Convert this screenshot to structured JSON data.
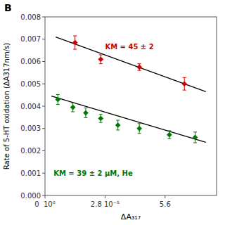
{
  "chart_data": {
    "type": "scatter",
    "title": "B",
    "xlabel": "ΔA₃₁₇",
    "ylabel": "Rate of 5-HT oxidation (ΔA317nm/s)",
    "xlim": [
      0,
      8e-05
    ],
    "ylim": [
      0,
      0.008
    ],
    "xticks": [
      {
        "value": 0,
        "label": "0  10⁰"
      },
      {
        "value": 2.8e-05,
        "label": "2.8 10⁻⁵"
      },
      {
        "value": 5.6e-05,
        "label": "5.6"
      }
    ],
    "yticks": [
      {
        "value": 0,
        "label": "0.000"
      },
      0.001,
      0.002,
      0.003,
      0.004,
      0.005,
      0.006,
      0.007,
      0.008
    ],
    "grid": false,
    "series": [
      {
        "type": "line",
        "color": "#000000",
        "x": [
          5e-06,
          7.5e-05
        ],
        "values": [
          0.0071,
          0.00465
        ]
      },
      {
        "type": "line",
        "color": "#000000",
        "x": [
          3e-06,
          7.5e-05
        ],
        "values": [
          0.00445,
          0.00238
        ]
      },
      {
        "type": "scatter",
        "color": "#cc0000",
        "marker": "diamond",
        "x": [
          1.4e-05,
          2.6e-05,
          4.4e-05,
          6.5e-05
        ],
        "values": [
          0.00685,
          0.0061,
          0.00575,
          0.005
        ],
        "yerr": [
          0.0003,
          0.0002,
          0.00015,
          0.00028
        ]
      },
      {
        "type": "scatter",
        "color": "#007700",
        "marker": "diamond",
        "x": [
          6e-06,
          1.3e-05,
          1.9e-05,
          2.6e-05,
          3.4e-05,
          4.4e-05,
          5.8e-05,
          7e-05
        ],
        "values": [
          0.0043,
          0.00395,
          0.0037,
          0.00345,
          0.00315,
          0.003,
          0.00272,
          0.0026
        ],
        "yerr": [
          0.00022,
          0.0002,
          0.00022,
          0.00018,
          0.00022,
          0.00022,
          0.00018,
          0.00024
        ]
      }
    ],
    "annotations": [
      {
        "text": "KM = 45 ± 2",
        "x": 2.8e-05,
        "y": 0.00655,
        "color": "#cc0000"
      },
      {
        "text": "KM = 39 ± 2 μM, He",
        "x": 4e-06,
        "y": 0.00088,
        "color": "#007700"
      }
    ]
  }
}
